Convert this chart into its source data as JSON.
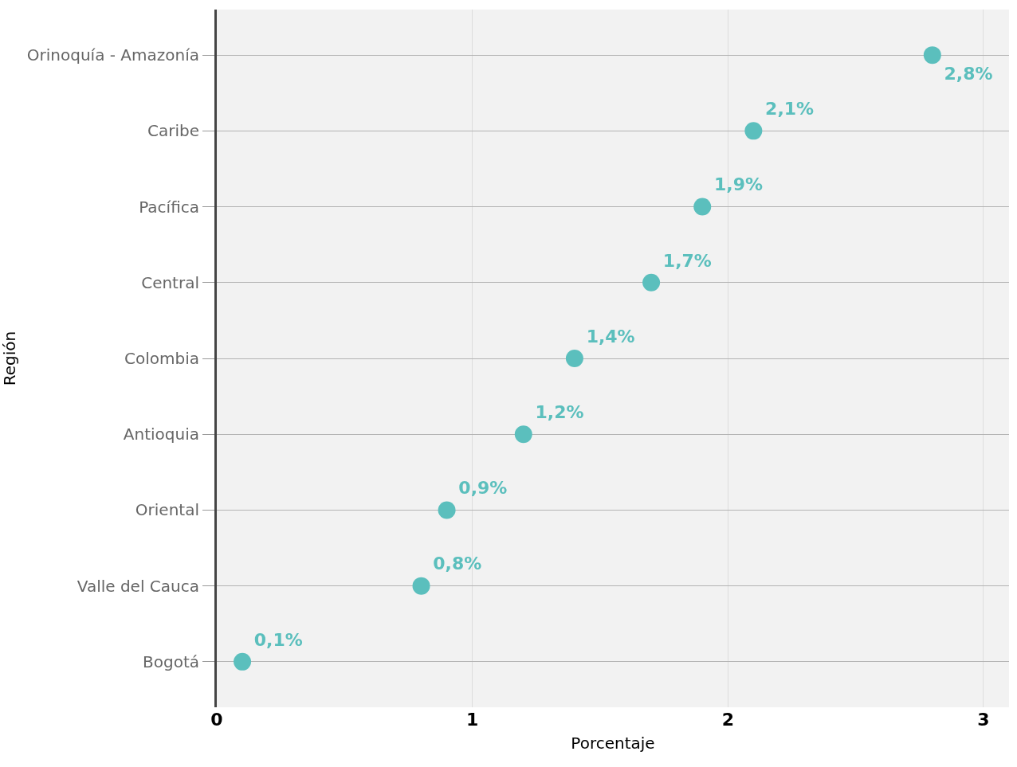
{
  "chart_data": {
    "type": "scatter",
    "orientation": "horizontal",
    "xlabel": "Porcentaje",
    "ylabel": "Región",
    "categories": [
      "Orinoquía - Amazonía",
      "Caribe",
      "Pacífica",
      "Central",
      "Colombia",
      "Antioquia",
      "Oriental",
      "Valle del Cauca",
      "Bogotá"
    ],
    "values": [
      2.8,
      2.1,
      1.9,
      1.7,
      1.4,
      1.2,
      0.9,
      0.8,
      0.1
    ],
    "value_labels": [
      "2,8%",
      "2,1%",
      "1,9%",
      "1,7%",
      "1,4%",
      "1,2%",
      "0,9%",
      "0,8%",
      "0,1%"
    ],
    "color": "#5bbfbd",
    "marker": "circle",
    "xlim": [
      0,
      3.1
    ],
    "xticks": [
      0,
      1,
      2,
      3
    ],
    "grid": true
  }
}
